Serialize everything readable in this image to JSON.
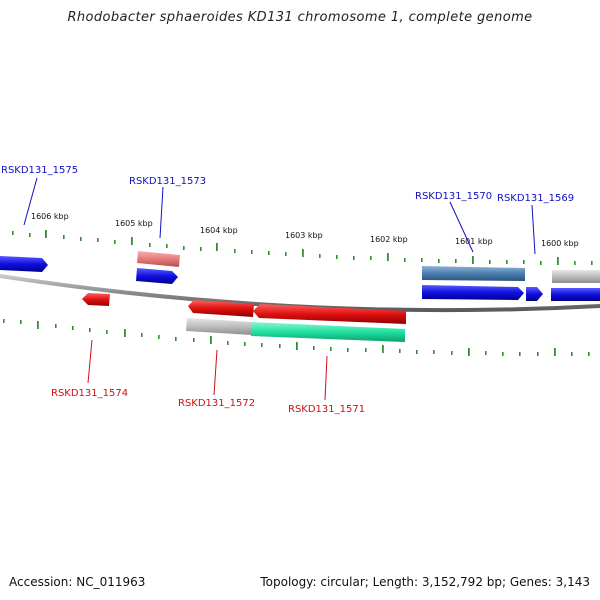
{
  "title": "Rhodobacter sphaeroides KD131 chromosome 1, complete genome",
  "footer": {
    "accession": "Accession: NC_011963",
    "summary": "Topology: circular; Length: 3,152,792 bp; Genes: 3,143"
  },
  "colors": {
    "backbone": "#8a8a8a",
    "tick": "#2f8f2f",
    "label_forward": "#1010c0",
    "label_reverse": "#d01010"
  },
  "kbp_labels": [
    "1606 kbp",
    "1605 kbp",
    "1604 kbp",
    "1603 kbp",
    "1602 kbp",
    "1601 kbp",
    "1600 kbp"
  ],
  "genes": [
    {
      "id": "RSKD131_1575",
      "strand": "forward",
      "color": "#1010e0"
    },
    {
      "id": "RSKD131_1574",
      "strand": "reverse",
      "color": "#e01010"
    },
    {
      "id": "RSKD131_1573",
      "strand": "forward",
      "color": "#1010e0"
    },
    {
      "id": "RSKD131_1572",
      "strand": "reverse",
      "color": "#e01010"
    },
    {
      "id": "RSKD131_1571",
      "strand": "reverse",
      "color": "#e01010"
    },
    {
      "id": "RSKD131_1570",
      "strand": "forward",
      "color": "#1010e0"
    },
    {
      "id": "RSKD131_1569",
      "strand": "forward",
      "color": "#1010e0"
    }
  ],
  "features": [
    {
      "type": "gene",
      "color": "#e87a7a"
    },
    {
      "type": "gene",
      "color": "#b8b8b8"
    },
    {
      "type": "gene",
      "color": "#20e0a0"
    },
    {
      "type": "gene",
      "color": "#4a7fb0"
    },
    {
      "type": "gene",
      "color": "#b0b0b0"
    }
  ]
}
